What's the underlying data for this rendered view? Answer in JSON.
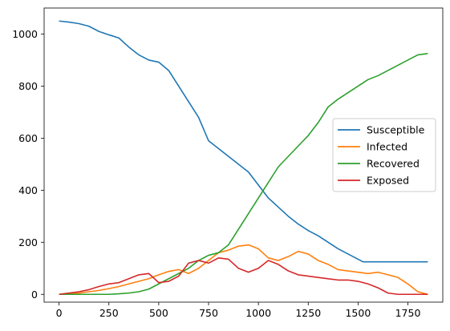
{
  "chart_data": {
    "type": "line",
    "title": "",
    "xlabel": "",
    "ylabel": "",
    "xlim": [
      -75,
      1925
    ],
    "ylim": [
      -30,
      1100
    ],
    "x_ticks": [
      0,
      250,
      500,
      750,
      1000,
      1250,
      1500,
      1750
    ],
    "y_ticks": [
      0,
      200,
      400,
      600,
      800,
      1000
    ],
    "x_tick_labels": [
      "0",
      "250",
      "500",
      "750",
      "1000",
      "1250",
      "1500",
      "1750"
    ],
    "y_tick_labels": [
      "0",
      "200",
      "400",
      "600",
      "800",
      "1000"
    ],
    "grid": false,
    "legend_position": "center-right",
    "series": [
      {
        "name": "Susceptible",
        "color": "#1f77b4",
        "x": [
          0,
          50,
          100,
          150,
          200,
          250,
          300,
          350,
          400,
          450,
          500,
          550,
          600,
          650,
          700,
          750,
          800,
          850,
          900,
          950,
          1000,
          1050,
          1100,
          1150,
          1200,
          1250,
          1300,
          1350,
          1400,
          1450,
          1500,
          1525,
          1550,
          1600,
          1650,
          1700,
          1750,
          1800,
          1850
        ],
        "values": [
          1050,
          1046,
          1040,
          1030,
          1010,
          997,
          985,
          950,
          920,
          900,
          892,
          860,
          800,
          740,
          680,
          590,
          560,
          530,
          500,
          470,
          420,
          370,
          335,
          300,
          270,
          245,
          225,
          200,
          175,
          155,
          135,
          125,
          125,
          125,
          125,
          125,
          125,
          125,
          125
        ]
      },
      {
        "name": "Infected",
        "color": "#ff7f0e",
        "x": [
          0,
          50,
          100,
          150,
          200,
          250,
          300,
          350,
          400,
          450,
          500,
          550,
          600,
          650,
          700,
          750,
          800,
          850,
          900,
          950,
          1000,
          1050,
          1100,
          1150,
          1200,
          1250,
          1300,
          1350,
          1400,
          1450,
          1500,
          1550,
          1600,
          1650,
          1700,
          1750,
          1800,
          1850
        ],
        "values": [
          0,
          2,
          5,
          10,
          15,
          22,
          30,
          40,
          50,
          60,
          75,
          88,
          95,
          80,
          100,
          130,
          160,
          170,
          185,
          190,
          175,
          140,
          130,
          145,
          165,
          155,
          130,
          115,
          95,
          90,
          85,
          80,
          85,
          75,
          65,
          40,
          10,
          0
        ]
      },
      {
        "name": "Recovered",
        "color": "#2ca02c",
        "x": [
          0,
          50,
          100,
          150,
          200,
          250,
          300,
          350,
          400,
          450,
          500,
          550,
          600,
          650,
          700,
          750,
          800,
          850,
          900,
          950,
          1000,
          1050,
          1100,
          1150,
          1200,
          1250,
          1300,
          1350,
          1400,
          1450,
          1500,
          1550,
          1600,
          1650,
          1700,
          1750,
          1800,
          1850
        ],
        "values": [
          0,
          0,
          0,
          0,
          0,
          0,
          2,
          5,
          10,
          20,
          40,
          60,
          80,
          100,
          130,
          150,
          160,
          190,
          250,
          310,
          370,
          430,
          490,
          530,
          570,
          610,
          660,
          720,
          750,
          775,
          800,
          825,
          840,
          860,
          880,
          900,
          920,
          925
        ]
      },
      {
        "name": "Exposed",
        "color": "#d62728",
        "x": [
          0,
          50,
          100,
          150,
          200,
          250,
          300,
          350,
          400,
          450,
          500,
          550,
          600,
          650,
          700,
          750,
          800,
          850,
          900,
          950,
          1000,
          1050,
          1100,
          1150,
          1200,
          1250,
          1300,
          1350,
          1400,
          1450,
          1500,
          1550,
          1600,
          1650,
          1700,
          1750,
          1800,
          1850
        ],
        "values": [
          0,
          5,
          10,
          18,
          30,
          40,
          45,
          60,
          75,
          80,
          45,
          50,
          70,
          120,
          130,
          120,
          140,
          135,
          100,
          85,
          100,
          130,
          115,
          90,
          75,
          70,
          65,
          60,
          55,
          55,
          50,
          40,
          25,
          5,
          0,
          0,
          0,
          0
        ]
      }
    ]
  }
}
